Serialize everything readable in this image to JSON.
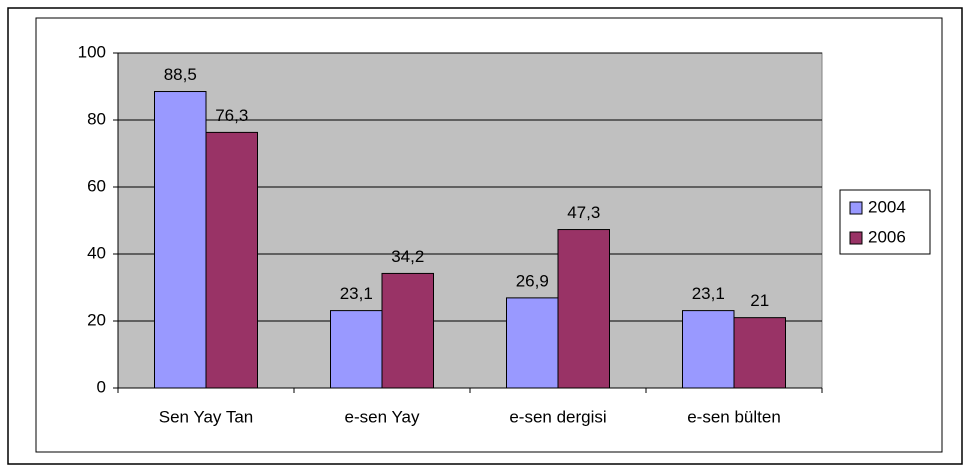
{
  "chart_data": {
    "type": "bar",
    "categories": [
      "Sen Yay Tan",
      "e-sen Yay",
      "e-sen dergisi",
      "e-sen bülten"
    ],
    "series": [
      {
        "name": "2004",
        "color": "#9999ff",
        "values": [
          88.5,
          23.1,
          26.9,
          23.1
        ],
        "value_labels": [
          "88,5",
          "23,1",
          "26,9",
          "23,1"
        ]
      },
      {
        "name": "2006",
        "color": "#993366",
        "values": [
          76.3,
          34.2,
          47.3,
          21
        ],
        "value_labels": [
          "76,3",
          "34,2",
          "47,3",
          "21"
        ]
      }
    ],
    "ylim": [
      0,
      100
    ],
    "yticks": [
      0,
      20,
      40,
      60,
      80,
      100
    ],
    "grid": true,
    "legend": "right"
  }
}
